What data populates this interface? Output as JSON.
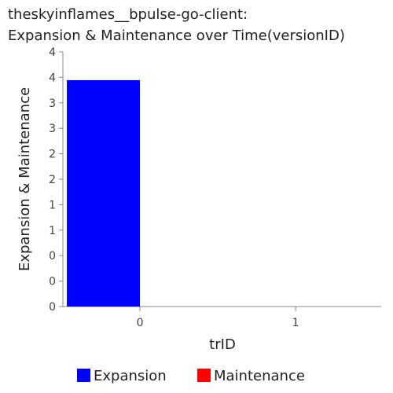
{
  "chart_data": {
    "type": "bar",
    "title_lines": [
      "theskyinflames__bpulse-go-client:",
      "Expansion & Maintenance over Time(versionID)"
    ],
    "xlabel": "trID",
    "ylabel": "Expansion & Maintenance",
    "categories": [
      "0",
      "1"
    ],
    "y_tick_labels": [
      "0",
      "0",
      "0",
      "1",
      "1",
      "2",
      "2",
      "3",
      "3",
      "4",
      "4"
    ],
    "ylim": [
      0,
      4.5
    ],
    "series": [
      {
        "name": "Expansion",
        "color": "#0000ff",
        "values": [
          4,
          0
        ]
      },
      {
        "name": "Maintenance",
        "color": "#ff0000",
        "values": [
          0,
          0
        ]
      }
    ],
    "legend_position": "bottom",
    "grid": false
  }
}
